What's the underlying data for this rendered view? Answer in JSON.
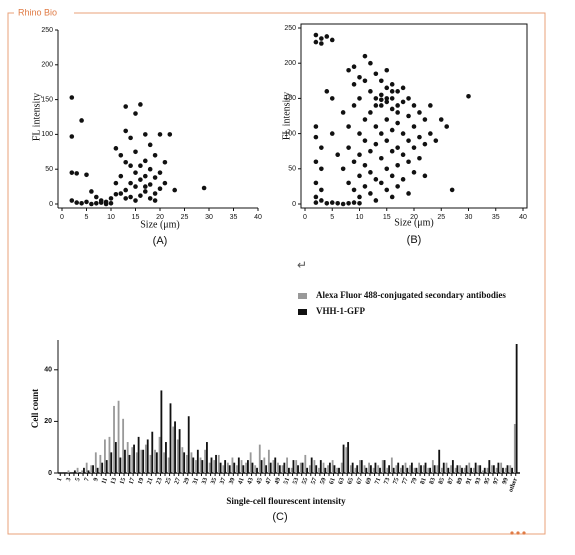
{
  "watermark": "Rhino Bio",
  "paragraph_mark": "↵",
  "chart_data": [
    {
      "type": "scatter",
      "caption": "(A)",
      "xlabel": "Size (μm)",
      "ylabel": "FL intensity",
      "color": "#111111",
      "box": false,
      "x": [
        2,
        2,
        2,
        3,
        2,
        3,
        4,
        5,
        6,
        7,
        8,
        9,
        10,
        4,
        5,
        6,
        7,
        8,
        9,
        10,
        11,
        11,
        12,
        12,
        13,
        13,
        13,
        13,
        14,
        14,
        14,
        15,
        15,
        15,
        15,
        15,
        16,
        16,
        16,
        17,
        17,
        17,
        17,
        18,
        18,
        18,
        18,
        19,
        19,
        19,
        20,
        20,
        20,
        21,
        21,
        22,
        23,
        29,
        12,
        14,
        16,
        17,
        19,
        13,
        11
      ],
      "values": [
        153,
        97,
        45,
        44,
        5,
        2,
        1,
        3,
        0,
        1,
        2,
        0,
        1,
        120,
        42,
        18,
        10,
        5,
        3,
        8,
        14,
        80,
        70,
        40,
        140,
        105,
        60,
        20,
        95,
        30,
        10,
        130,
        75,
        45,
        25,
        5,
        55,
        35,
        12,
        100,
        62,
        40,
        18,
        85,
        50,
        28,
        8,
        70,
        38,
        15,
        100,
        45,
        22,
        60,
        30,
        100,
        20,
        23,
        15,
        55,
        143,
        25,
        5,
        8,
        30
      ],
      "xlim": [
        0,
        40
      ],
      "ylim": [
        0,
        250
      ],
      "xticks": [
        0,
        5,
        10,
        15,
        20,
        25,
        30,
        35,
        40
      ],
      "yticks": [
        0,
        50,
        100,
        150,
        200,
        250
      ]
    },
    {
      "type": "scatter",
      "caption": "(B)",
      "xlabel": "Size (μm)",
      "ylabel": "FL intensity",
      "color": "#111111",
      "box": true,
      "x": [
        2,
        3,
        2,
        4,
        5,
        3,
        2,
        2,
        3,
        2,
        3,
        2,
        3,
        2,
        3,
        2,
        4,
        5,
        6,
        7,
        8,
        9,
        10,
        4,
        5,
        5,
        6,
        7,
        7,
        8,
        8,
        8,
        8,
        9,
        9,
        9,
        9,
        9,
        10,
        10,
        10,
        10,
        10,
        10,
        11,
        11,
        11,
        11,
        11,
        11,
        12,
        12,
        12,
        12,
        12,
        12,
        13,
        13,
        13,
        13,
        13,
        13,
        14,
        14,
        14,
        14,
        14,
        14,
        15,
        15,
        15,
        15,
        15,
        15,
        15,
        16,
        16,
        16,
        16,
        16,
        16,
        16,
        17,
        17,
        17,
        17,
        17,
        17,
        18,
        18,
        18,
        18,
        18,
        19,
        19,
        19,
        19,
        19,
        20,
        20,
        20,
        20,
        21,
        21,
        21,
        22,
        22,
        22,
        23,
        23,
        24,
        25,
        26,
        27,
        30,
        14,
        15,
        16,
        17,
        13
      ],
      "values": [
        240,
        235,
        230,
        238,
        233,
        228,
        110,
        95,
        80,
        60,
        50,
        30,
        20,
        10,
        5,
        2,
        1,
        2,
        1,
        0,
        1,
        2,
        1,
        160,
        100,
        150,
        70,
        50,
        130,
        190,
        110,
        80,
        30,
        195,
        170,
        140,
        60,
        20,
        180,
        150,
        100,
        70,
        40,
        10,
        210,
        175,
        120,
        90,
        55,
        25,
        200,
        160,
        130,
        75,
        45,
        15,
        185,
        150,
        110,
        85,
        35,
        5,
        175,
        155,
        140,
        100,
        65,
        30,
        190,
        165,
        145,
        120,
        90,
        50,
        20,
        170,
        150,
        135,
        105,
        75,
        40,
        10,
        160,
        140,
        115,
        80,
        55,
        25,
        165,
        145,
        100,
        70,
        35,
        150,
        125,
        90,
        60,
        15,
        140,
        110,
        80,
        45,
        130,
        95,
        65,
        120,
        85,
        40,
        100,
        140,
        90,
        120,
        110,
        20,
        153,
        148,
        150,
        160,
        130,
        140
      ],
      "xlim": [
        0,
        40
      ],
      "ylim": [
        0,
        250
      ],
      "xticks": [
        0,
        5,
        10,
        15,
        20,
        25,
        30,
        35,
        40
      ],
      "yticks": [
        0,
        50,
        100,
        150,
        200,
        250
      ]
    },
    {
      "type": "bar",
      "caption": "(C)",
      "xlabel": "Single-cell flourescent intensity",
      "ylabel": "Cell count",
      "categories": [
        "1",
        null,
        "3",
        null,
        "5",
        null,
        "7",
        null,
        "9",
        null,
        "11",
        null,
        "13",
        null,
        "15",
        null,
        "17",
        null,
        "19",
        null,
        "21",
        null,
        "23",
        null,
        "25",
        null,
        "27",
        null,
        "29",
        null,
        "31",
        null,
        "33",
        null,
        "35",
        null,
        "37",
        null,
        "39",
        null,
        "41",
        null,
        "43",
        null,
        "45",
        null,
        "47",
        null,
        "49",
        null,
        "51",
        null,
        "53",
        null,
        "55",
        null,
        "57",
        null,
        "59",
        null,
        "61",
        null,
        "63",
        null,
        "65",
        null,
        "67",
        null,
        "69",
        null,
        "71",
        null,
        "73",
        null,
        "75",
        null,
        "77",
        null,
        "79",
        null,
        "81",
        null,
        "83",
        null,
        "85",
        null,
        "87",
        null,
        "89",
        null,
        "91",
        null,
        "93",
        null,
        "95",
        null,
        "97",
        null,
        "99",
        null,
        "other"
      ],
      "series": [
        {
          "name": "Alexa Fluor 488-conjugated secondary antibodies",
          "color": "#999999",
          "values": [
            0,
            0,
            1,
            0,
            2,
            1,
            4,
            3,
            8,
            7,
            13,
            14,
            26,
            28,
            21,
            12,
            10,
            8,
            9,
            11,
            7,
            9,
            14,
            8,
            6,
            18,
            13,
            10,
            7,
            8,
            5,
            6,
            9,
            4,
            5,
            7,
            3,
            4,
            6,
            3,
            5,
            4,
            8,
            3,
            11,
            6,
            9,
            5,
            4,
            3,
            6,
            2,
            5,
            4,
            7,
            3,
            5,
            2,
            4,
            3,
            5,
            2,
            4,
            10,
            3,
            2,
            5,
            3,
            4,
            2,
            3,
            5,
            2,
            6,
            3,
            2,
            4,
            3,
            2,
            4,
            3,
            2,
            5,
            3,
            2,
            4,
            3,
            2,
            3,
            2,
            4,
            2,
            3,
            1,
            2,
            3,
            2,
            4,
            2,
            3,
            19
          ]
        },
        {
          "name": "VHH-1-GFP",
          "color": "#111111",
          "values": [
            0,
            0,
            0,
            1,
            0,
            2,
            1,
            3,
            2,
            4,
            5,
            8,
            12,
            6,
            9,
            7,
            11,
            14,
            9,
            13,
            16,
            8,
            32,
            12,
            27,
            20,
            17,
            8,
            22,
            6,
            9,
            5,
            12,
            6,
            7,
            4,
            5,
            3,
            4,
            6,
            3,
            5,
            4,
            2,
            5,
            3,
            4,
            6,
            3,
            4,
            2,
            5,
            3,
            4,
            2,
            6,
            3,
            5,
            2,
            4,
            3,
            2,
            11,
            12,
            4,
            3,
            5,
            2,
            3,
            4,
            2,
            5,
            3,
            2,
            4,
            3,
            2,
            4,
            2,
            3,
            4,
            2,
            3,
            9,
            4,
            2,
            5,
            3,
            2,
            3,
            2,
            4,
            3,
            2,
            5,
            3,
            4,
            2,
            3,
            2,
            50
          ]
        }
      ],
      "ylim": [
        0,
        50
      ],
      "yticks": [
        0,
        20,
        40
      ]
    }
  ]
}
